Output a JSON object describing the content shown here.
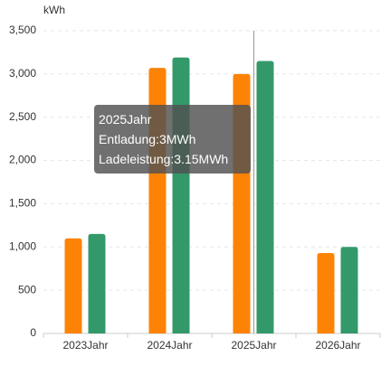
{
  "chart_data": {
    "type": "bar",
    "y_axis_label": "kWh",
    "categories": [
      "2023Jahr",
      "2024Jahr",
      "2025Jahr",
      "2026Jahr"
    ],
    "series": [
      {
        "color": "#fd8306",
        "values": [
          1100,
          3070,
          3000,
          930
        ]
      },
      {
        "color": "#33996a",
        "values": [
          1150,
          3190,
          3150,
          1000
        ]
      }
    ],
    "ylim": [
      0,
      3500
    ],
    "yticks": [
      0,
      500,
      {
        "value": 1000,
        "label": "1,000"
      },
      {
        "value": 1500,
        "label": "1,500"
      },
      {
        "value": 2000,
        "label": "2,000"
      },
      {
        "value": 2500,
        "label": "2,500"
      },
      {
        "value": 3000,
        "label": "3,000"
      },
      {
        "value": 3500,
        "label": "3,500"
      }
    ],
    "grid": true,
    "tooltip": {
      "title": "2025Jahr",
      "lines": [
        "Entladung:3MWh",
        "Ladeleistung:3.15MWh"
      ]
    }
  }
}
